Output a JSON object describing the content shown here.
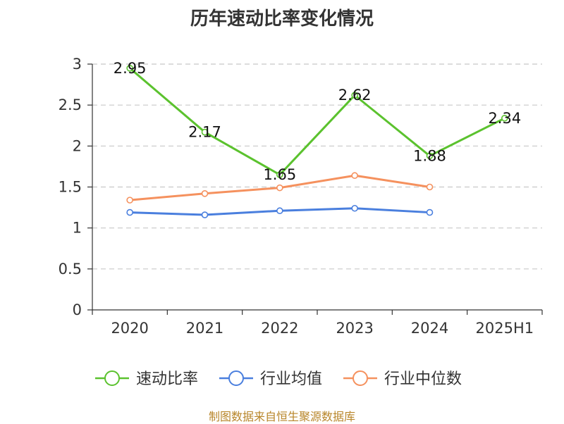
{
  "title": "历年速动比率变化情况",
  "source": "制图数据来自恒生聚源数据库",
  "chart_data": {
    "type": "line",
    "categories": [
      "2020",
      "2021",
      "2022",
      "2023",
      "2024",
      "2025H1"
    ],
    "ylim": [
      0,
      3
    ],
    "yticks": [
      0,
      0.5,
      1,
      1.5,
      2,
      2.5,
      3
    ],
    "ytick_labels": [
      "0",
      "0.5",
      "1",
      "1.5",
      "2",
      "2.5",
      "3"
    ],
    "grid": true,
    "legend_position": "bottom",
    "series": [
      {
        "name": "速动比率",
        "color": "#5bc22e",
        "values": [
          2.95,
          2.17,
          1.65,
          2.62,
          1.88,
          2.34
        ],
        "labels": [
          "2.95",
          "2.17",
          "1.65",
          "2.62",
          "1.88",
          "2.34"
        ]
      },
      {
        "name": "行业均值",
        "color": "#4a7fde",
        "values": [
          1.19,
          1.16,
          1.21,
          1.24,
          1.19,
          null
        ]
      },
      {
        "name": "行业中位数",
        "color": "#f5915e",
        "values": [
          1.34,
          1.42,
          1.49,
          1.64,
          1.5,
          null
        ]
      }
    ]
  }
}
